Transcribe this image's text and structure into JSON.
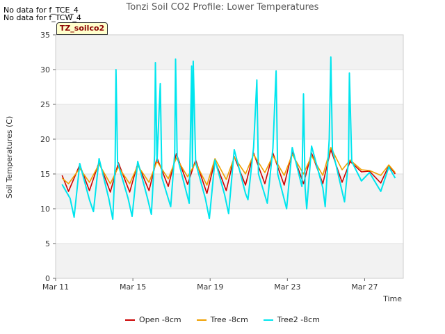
{
  "notes": [
    "No data for f_TCE_4",
    "No data for f_TCW_4"
  ],
  "badge": "TZ_soilco2",
  "chart_data": {
    "type": "line",
    "title": "Tonzi Soil CO2 Profile: Lower Temperatures",
    "xlabel": "Time",
    "ylabel": "Soil Temperatures (C)",
    "ylim": [
      0,
      35
    ],
    "yticks": [
      0,
      5,
      10,
      15,
      20,
      25,
      30,
      35
    ],
    "xlim": [
      "2024-03-11",
      "2024-03-29"
    ],
    "xticks": [
      {
        "x": "2024-03-11",
        "label": "Mar 11"
      },
      {
        "x": "2024-03-15",
        "label": "Mar 15"
      },
      {
        "x": "2024-03-19",
        "label": "Mar 19"
      },
      {
        "x": "2024-03-23",
        "label": "Mar 23"
      },
      {
        "x": "2024-03-27",
        "label": "Mar 27"
      }
    ],
    "grid": "horizontal bands",
    "legend_position": "bottom",
    "series": [
      {
        "name": "Open -8cm",
        "color": "#cc0000",
        "points": [
          [
            "2024-03-11T08:00",
            14.8
          ],
          [
            "2024-03-11T16:00",
            12.5
          ],
          [
            "2024-03-12T06:00",
            16.3
          ],
          [
            "2024-03-12T18:00",
            12.6
          ],
          [
            "2024-03-13T06:00",
            16.7
          ],
          [
            "2024-03-13T20:00",
            12.4
          ],
          [
            "2024-03-14T06:00",
            16.6
          ],
          [
            "2024-03-14T20:00",
            12.4
          ],
          [
            "2024-03-15T06:00",
            16.5
          ],
          [
            "2024-03-15T20:00",
            12.6
          ],
          [
            "2024-03-16T06:00",
            17.3
          ],
          [
            "2024-03-16T20:00",
            13.2
          ],
          [
            "2024-03-17T06:00",
            17.9
          ],
          [
            "2024-03-17T20:00",
            13.5
          ],
          [
            "2024-03-18T06:00",
            17.0
          ],
          [
            "2024-03-18T20:00",
            12.2
          ],
          [
            "2024-03-19T06:00",
            16.9
          ],
          [
            "2024-03-19T20:00",
            12.6
          ],
          [
            "2024-03-20T06:00",
            17.5
          ],
          [
            "2024-03-20T20:00",
            13.4
          ],
          [
            "2024-03-21T06:00",
            18.0
          ],
          [
            "2024-03-21T20:00",
            13.6
          ],
          [
            "2024-03-22T06:00",
            18.0
          ],
          [
            "2024-03-22T20:00",
            13.4
          ],
          [
            "2024-03-23T06:00",
            18.2
          ],
          [
            "2024-03-23T20:00",
            13.6
          ],
          [
            "2024-03-24T06:00",
            18.0
          ],
          [
            "2024-03-24T20:00",
            13.6
          ],
          [
            "2024-03-25T06:00",
            18.5
          ],
          [
            "2024-03-25T20:00",
            13.8
          ],
          [
            "2024-03-26T06:00",
            16.8
          ],
          [
            "2024-03-26T20:00",
            15.3
          ],
          [
            "2024-03-27T06:00",
            15.4
          ],
          [
            "2024-03-27T20:00",
            13.7
          ],
          [
            "2024-03-28T06:00",
            16.2
          ],
          [
            "2024-03-28T14:00",
            15.0
          ]
        ]
      },
      {
        "name": "Tree -8cm",
        "color": "#f0a000",
        "points": [
          [
            "2024-03-11T08:00",
            14.4
          ],
          [
            "2024-03-11T16:00",
            13.6
          ],
          [
            "2024-03-12T06:00",
            15.8
          ],
          [
            "2024-03-12T18:00",
            13.8
          ],
          [
            "2024-03-13T06:00",
            16.4
          ],
          [
            "2024-03-13T20:00",
            13.6
          ],
          [
            "2024-03-14T06:00",
            16.0
          ],
          [
            "2024-03-14T20:00",
            13.6
          ],
          [
            "2024-03-15T06:00",
            16.2
          ],
          [
            "2024-03-15T20:00",
            13.8
          ],
          [
            "2024-03-16T06:00",
            16.8
          ],
          [
            "2024-03-16T20:00",
            14.3
          ],
          [
            "2024-03-17T06:00",
            17.3
          ],
          [
            "2024-03-17T20:00",
            14.6
          ],
          [
            "2024-03-18T06:00",
            16.6
          ],
          [
            "2024-03-18T20:00",
            13.4
          ],
          [
            "2024-03-19T06:00",
            17.2
          ],
          [
            "2024-03-19T20:00",
            14.2
          ],
          [
            "2024-03-20T06:00",
            17.4
          ],
          [
            "2024-03-20T20:00",
            15.0
          ],
          [
            "2024-03-21T06:00",
            17.8
          ],
          [
            "2024-03-21T20:00",
            15.2
          ],
          [
            "2024-03-22T06:00",
            17.6
          ],
          [
            "2024-03-22T20:00",
            14.8
          ],
          [
            "2024-03-23T06:00",
            17.8
          ],
          [
            "2024-03-23T20:00",
            15.0
          ],
          [
            "2024-03-24T06:00",
            17.6
          ],
          [
            "2024-03-24T20:00",
            14.8
          ],
          [
            "2024-03-25T06:00",
            18.8
          ],
          [
            "2024-03-25T20:00",
            15.6
          ],
          [
            "2024-03-26T06:00",
            17.0
          ],
          [
            "2024-03-26T20:00",
            15.6
          ],
          [
            "2024-03-27T06:00",
            15.5
          ],
          [
            "2024-03-27T20:00",
            14.8
          ],
          [
            "2024-03-28T06:00",
            16.3
          ],
          [
            "2024-03-28T14:00",
            15.2
          ]
        ]
      },
      {
        "name": "Tree2 -8cm",
        "color": "#00e5ee",
        "points": [
          [
            "2024-03-11T08:00",
            13.5
          ],
          [
            "2024-03-11T18:00",
            11.5
          ],
          [
            "2024-03-11T23:00",
            8.8
          ],
          [
            "2024-03-12T06:00",
            16.5
          ],
          [
            "2024-03-12T18:00",
            11.3
          ],
          [
            "2024-03-12T23:00",
            9.6
          ],
          [
            "2024-03-13T06:00",
            17.2
          ],
          [
            "2024-03-13T18:00",
            11.5
          ],
          [
            "2024-03-13T23:00",
            8.5
          ],
          [
            "2024-03-14T02:00",
            16.4
          ],
          [
            "2024-03-14T03:00",
            30.0
          ],
          [
            "2024-03-14T05:00",
            16.7
          ],
          [
            "2024-03-14T18:00",
            11.5
          ],
          [
            "2024-03-14T23:00",
            8.9
          ],
          [
            "2024-03-15T06:00",
            16.8
          ],
          [
            "2024-03-15T18:00",
            11.6
          ],
          [
            "2024-03-15T23:00",
            9.2
          ],
          [
            "2024-03-16T03:00",
            17.8
          ],
          [
            "2024-03-16T04:00",
            31.0
          ],
          [
            "2024-03-16T06:00",
            16.8
          ],
          [
            "2024-03-16T10:00",
            28.0
          ],
          [
            "2024-03-16T12:00",
            14.5
          ],
          [
            "2024-03-16T23:00",
            10.3
          ],
          [
            "2024-03-17T04:00",
            18.0
          ],
          [
            "2024-03-17T05:00",
            31.5
          ],
          [
            "2024-03-17T07:00",
            17.5
          ],
          [
            "2024-03-17T22:00",
            10.8
          ],
          [
            "2024-03-18T01:00",
            30.5
          ],
          [
            "2024-03-18T02:00",
            16.0
          ],
          [
            "2024-03-18T03:00",
            31.2
          ],
          [
            "2024-03-18T06:00",
            16.6
          ],
          [
            "2024-03-18T18:00",
            11.5
          ],
          [
            "2024-03-18T23:00",
            8.6
          ],
          [
            "2024-03-19T06:00",
            17.0
          ],
          [
            "2024-03-19T18:00",
            12.0
          ],
          [
            "2024-03-19T23:00",
            9.3
          ],
          [
            "2024-03-20T06:00",
            18.5
          ],
          [
            "2024-03-20T20:00",
            12.2
          ],
          [
            "2024-03-20T23:00",
            11.3
          ],
          [
            "2024-03-21T06:00",
            18.8
          ],
          [
            "2024-03-21T10:00",
            28.5
          ],
          [
            "2024-03-21T12:00",
            15.0
          ],
          [
            "2024-03-21T23:00",
            10.8
          ],
          [
            "2024-03-22T06:00",
            18.7
          ],
          [
            "2024-03-22T10:00",
            29.8
          ],
          [
            "2024-03-22T12:00",
            15.0
          ],
          [
            "2024-03-22T23:00",
            10.0
          ],
          [
            "2024-03-23T06:00",
            18.8
          ],
          [
            "2024-03-23T18:00",
            13.2
          ],
          [
            "2024-03-23T20:00",
            26.5
          ],
          [
            "2024-03-23T22:00",
            13.0
          ],
          [
            "2024-03-24T00:00",
            10.0
          ],
          [
            "2024-03-24T06:00",
            19.0
          ],
          [
            "2024-03-24T20:00",
            13.0
          ],
          [
            "2024-03-24T23:00",
            10.3
          ],
          [
            "2024-03-25T04:00",
            20.0
          ],
          [
            "2024-03-25T06:00",
            31.8
          ],
          [
            "2024-03-25T08:00",
            18.5
          ],
          [
            "2024-03-25T20:00",
            12.5
          ],
          [
            "2024-03-25T23:00",
            11.0
          ],
          [
            "2024-03-26T04:00",
            17.0
          ],
          [
            "2024-03-26T05:00",
            29.5
          ],
          [
            "2024-03-26T08:00",
            16.8
          ],
          [
            "2024-03-26T20:00",
            14.0
          ],
          [
            "2024-03-27T06:00",
            15.2
          ],
          [
            "2024-03-27T20:00",
            12.5
          ],
          [
            "2024-03-28T06:00",
            16.0
          ],
          [
            "2024-03-28T14:00",
            14.4
          ]
        ]
      }
    ]
  }
}
